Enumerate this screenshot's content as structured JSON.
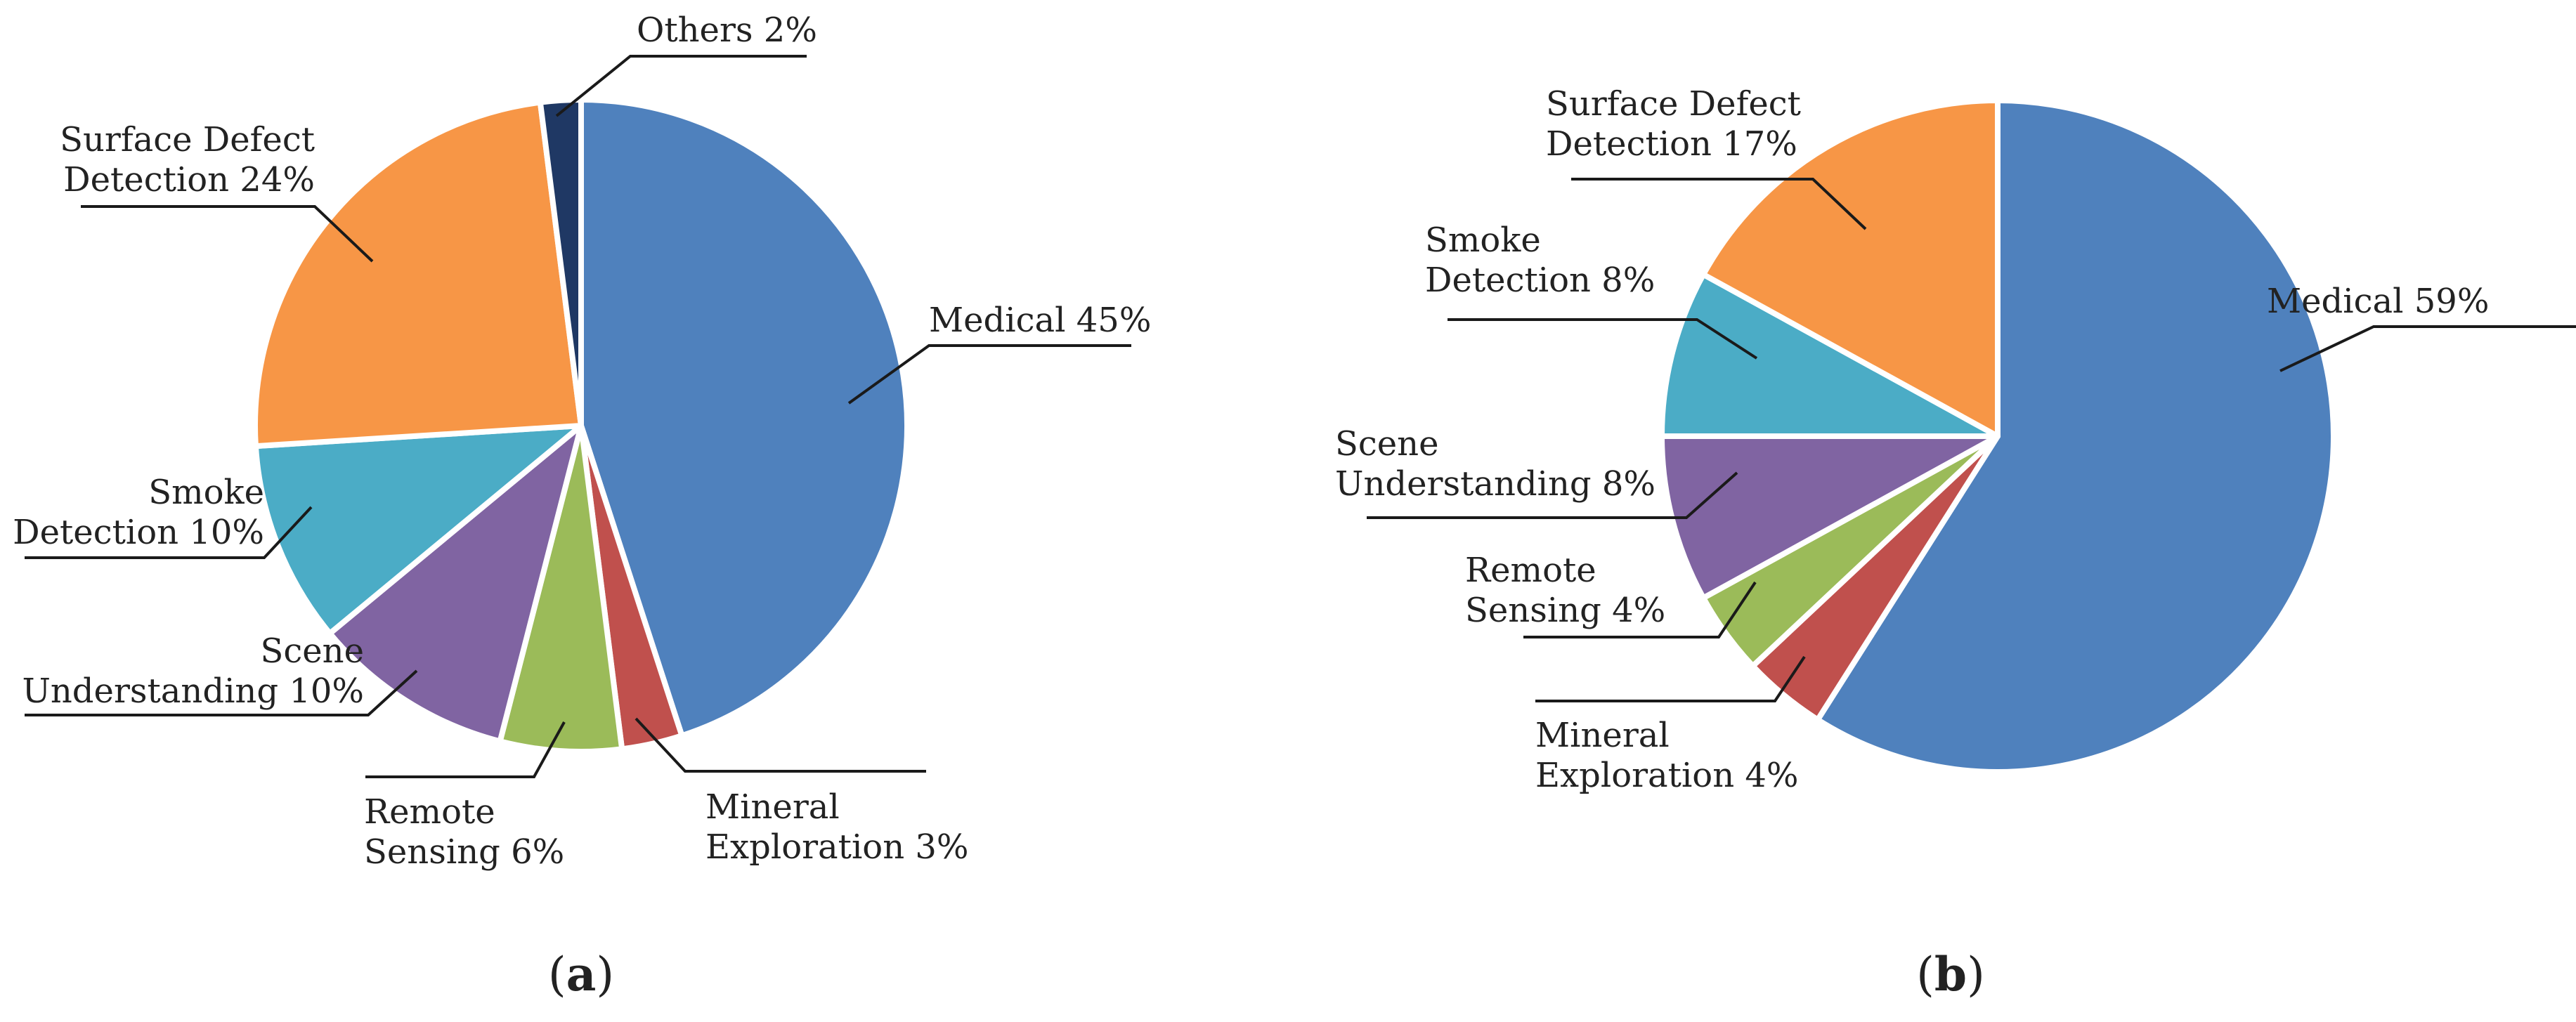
{
  "chart_data": [
    {
      "type": "pie",
      "title": "",
      "panel_label": "a",
      "slices": [
        {
          "name": "Medical",
          "value": 45,
          "label_lines": [
            "Medical 45%"
          ],
          "color": "#4F81BD"
        },
        {
          "name": "Mineral Exploration",
          "value": 3,
          "label_lines": [
            "Mineral",
            "Exploration 3%"
          ],
          "color": "#C0504D"
        },
        {
          "name": "Remote Sensing",
          "value": 6,
          "label_lines": [
            "Remote",
            "Sensing 6%"
          ],
          "color": "#9BBB59"
        },
        {
          "name": "Scene Understanding",
          "value": 10,
          "label_lines": [
            "Scene",
            "Understanding 10%"
          ],
          "color": "#8064A2"
        },
        {
          "name": "Smoke Detection",
          "value": 10,
          "label_lines": [
            "Smoke",
            "Detection 10%"
          ],
          "color": "#4BACC6"
        },
        {
          "name": "Surface Defect Detection",
          "value": 24,
          "label_lines": [
            "Surface Defect",
            "Detection 24%"
          ],
          "color": "#F79646"
        },
        {
          "name": "Others",
          "value": 2,
          "label_lines": [
            "Others 2%"
          ],
          "color": "#1F3864"
        }
      ]
    },
    {
      "type": "pie",
      "title": "",
      "panel_label": "b",
      "slices": [
        {
          "name": "Medical",
          "value": 59,
          "label_lines": [
            "Medical 59%"
          ],
          "color": "#4F81BD"
        },
        {
          "name": "Mineral Exploration",
          "value": 4,
          "label_lines": [
            "Mineral",
            "Exploration 4%"
          ],
          "color": "#C0504D"
        },
        {
          "name": "Remote Sensing",
          "value": 4,
          "label_lines": [
            "Remote",
            "Sensing 4%"
          ],
          "color": "#9BBB59"
        },
        {
          "name": "Scene Understanding",
          "value": 8,
          "label_lines": [
            "Scene",
            "Understanding 8%"
          ],
          "color": "#8064A2"
        },
        {
          "name": "Smoke Detection",
          "value": 8,
          "label_lines": [
            "Smoke",
            "Detection 8%"
          ],
          "color": "#4BACC6"
        },
        {
          "name": "Surface Defect Detection",
          "value": 17,
          "label_lines": [
            "Surface Defect",
            "Detection 17%"
          ],
          "color": "#F79646"
        }
      ]
    }
  ]
}
